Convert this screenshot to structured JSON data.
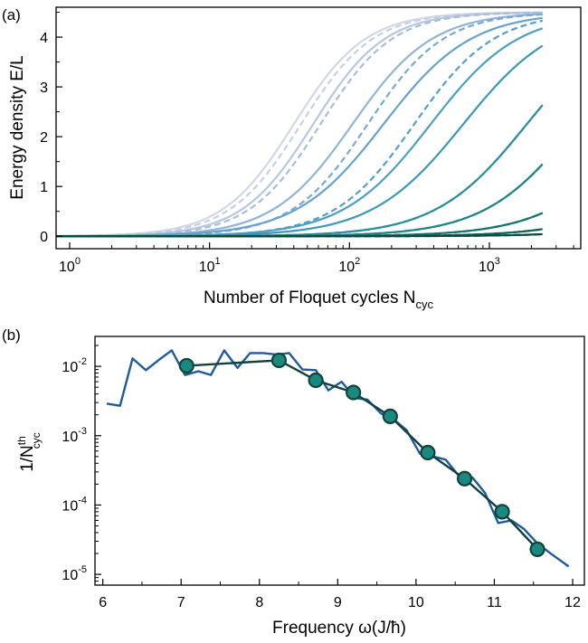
{
  "chart_data": [
    {
      "panel_label": "(a)",
      "type": "line",
      "xlabel": "Number of Floquet cycles N",
      "xlabel_sub": "cyc",
      "ylabel": "Energy density E/L",
      "xscale": "log",
      "xlim": [
        0.8,
        4500
      ],
      "ylim": [
        -0.25,
        4.6
      ],
      "xticks": [
        1,
        10,
        100,
        1000
      ],
      "xtick_labels": [
        {
          "base": "10",
          "exp": "0"
        },
        {
          "base": "10",
          "exp": "1"
        },
        {
          "base": "10",
          "exp": "2"
        },
        {
          "base": "10",
          "exp": "3"
        }
      ],
      "yticks": [
        0,
        1,
        2,
        3,
        4
      ],
      "ytick_labels": [
        "0",
        "1",
        "2",
        "3",
        "4"
      ],
      "grid": false,
      "x_end": 2400,
      "saturation": 4.5,
      "series": [
        {
          "style": "solid",
          "color": "#d2d7e6",
          "x50": 40,
          "width": 0.9
        },
        {
          "style": "dashed",
          "color": "#c7d0e3",
          "x50": 45,
          "width": 0.9
        },
        {
          "style": "solid",
          "color": "#b8c7e0",
          "x50": 55,
          "width": 0.9
        },
        {
          "style": "dashed",
          "color": "#a9bddb",
          "x50": 62,
          "width": 0.9
        },
        {
          "style": "solid",
          "color": "#8fb4d8",
          "x50": 105,
          "width": 1.0
        },
        {
          "style": "dashed",
          "color": "#7aa9d2",
          "x50": 135,
          "width": 0.95
        },
        {
          "style": "solid",
          "color": "#66a3cc",
          "x50": 175,
          "width": 1.1
        },
        {
          "style": "dashed",
          "color": "#55a0c6",
          "x50": 290,
          "width": 1.0
        },
        {
          "style": "solid",
          "color": "#4c9ec2",
          "x50": 380,
          "width": 1.1
        },
        {
          "style": "solid",
          "color": "#3b98b8",
          "x50": 650,
          "width": 1.15
        },
        {
          "style": "solid",
          "color": "#2a8eaa",
          "x50": 1850,
          "width": 1.15
        },
        {
          "style": "dashed",
          "color": "#2a8f98",
          "x50": 1850,
          "width": 1.15
        },
        {
          "style": "solid",
          "color": "#1f8588",
          "x50": 4200,
          "width": 1.15
        },
        {
          "style": "dashed",
          "color": "#1d8586",
          "x50": 4200,
          "width": 1.15
        },
        {
          "style": "solid",
          "color": "#17766f",
          "x50": 13000,
          "width": 1.2
        },
        {
          "style": "dashed",
          "color": "#15736c",
          "x50": 13000,
          "width": 1.2
        },
        {
          "style": "solid",
          "color": "#10645a",
          "x50": 35000,
          "width": 1.2
        },
        {
          "style": "dashed",
          "color": "#0f6158",
          "x50": 35000,
          "width": 1.2
        },
        {
          "style": "solid",
          "color": "#0a4d42",
          "x50": 110000,
          "width": 1.25
        },
        {
          "style": "dashed",
          "color": "#0a4b40",
          "x50": 110000,
          "width": 1.25
        }
      ]
    },
    {
      "panel_label": "(b)",
      "type": "line",
      "xlabel": "Frequency ω(J/ħ)",
      "ylabel": "1/N",
      "ylabel_sup": "th",
      "ylabel_sub": "cyc",
      "yscale": "log",
      "xlim": [
        5.9,
        12.15
      ],
      "ylim": [
        7e-06,
        0.027
      ],
      "xticks": [
        6,
        7,
        8,
        9,
        10,
        11,
        12
      ],
      "xtick_labels": [
        "6",
        "7",
        "8",
        "9",
        "10",
        "11",
        "12"
      ],
      "yticks": [
        1e-05,
        0.0001,
        0.001,
        0.01
      ],
      "ytick_labels": [
        {
          "base": "10",
          "exp": "-5"
        },
        {
          "base": "10",
          "exp": "-4"
        },
        {
          "base": "10",
          "exp": "-3"
        },
        {
          "base": "10",
          "exp": "-2"
        }
      ],
      "grid": false,
      "series": [
        {
          "style": "line",
          "color": "#1f5aa0",
          "x": [
            6.05,
            6.22,
            6.38,
            6.55,
            6.72,
            6.88,
            7.05,
            7.22,
            7.38,
            7.55,
            7.72,
            7.88,
            8.05,
            8.22,
            8.38,
            8.55,
            8.72,
            8.88,
            9.05,
            9.22,
            9.38,
            9.55,
            9.72,
            9.88,
            10.05,
            10.22,
            10.38,
            10.55,
            10.72,
            10.88,
            11.05,
            11.22,
            11.38,
            11.55,
            11.72,
            11.95
          ],
          "y": [
            0.0029,
            0.0027,
            0.013,
            0.0088,
            0.0125,
            0.017,
            0.0075,
            0.0085,
            0.0075,
            0.017,
            0.0095,
            0.0155,
            0.0155,
            0.0148,
            0.0155,
            0.009,
            0.0088,
            0.0045,
            0.006,
            0.0035,
            0.0033,
            0.0021,
            0.0017,
            0.0012,
            0.00055,
            0.0005,
            0.00045,
            0.00026,
            0.00025,
            0.00015,
            5.5e-05,
            6e-05,
            4.5e-05,
            2.8e-05,
            2e-05,
            1.3e-05
          ]
        },
        {
          "style": "line+markers",
          "color": "#12423a",
          "marker_fill": "#1a8a80",
          "x": [
            7.07,
            8.25,
            8.72,
            9.2,
            9.67,
            10.15,
            10.62,
            11.1,
            11.55
          ],
          "y": [
            0.0102,
            0.0122,
            0.0063,
            0.0042,
            0.0019,
            0.00057,
            0.00024,
            8e-05,
            2.3e-05
          ]
        }
      ]
    }
  ]
}
